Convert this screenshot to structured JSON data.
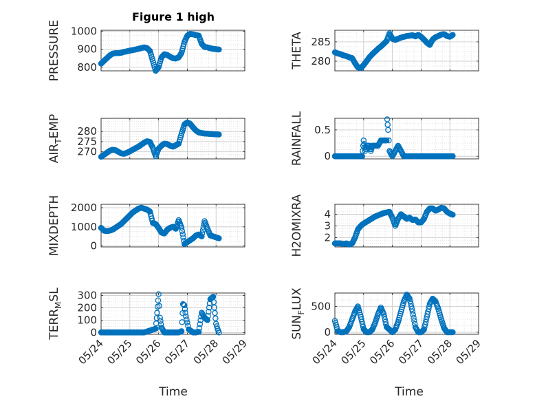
{
  "figure": {
    "title": "Figure 1 high",
    "xlabel": "Time",
    "marker_color": "#0072BD",
    "grid": "on, with minor grid"
  },
  "chart_data": [
    {
      "type": "scatter",
      "ylabel": "PRESSURE",
      "xlim": [
        "05/24",
        "05/29"
      ],
      "ylim": [
        780,
        1005
      ],
      "yticks": [
        800,
        900,
        1000
      ],
      "xticks": [
        "05/24",
        "05/25",
        "05/26",
        "05/27",
        "05/28",
        "05/29"
      ],
      "x": [
        0.0,
        0.1,
        0.2,
        0.3,
        0.4,
        0.5,
        0.6,
        0.7,
        0.8,
        0.9,
        1.0,
        1.1,
        1.2,
        1.3,
        1.4,
        1.5,
        1.6,
        1.7,
        1.8,
        1.9,
        2.0,
        2.1,
        2.2,
        2.3,
        2.4,
        2.5,
        2.6,
        2.7,
        2.8,
        2.9,
        3.0,
        3.1,
        3.2,
        3.3,
        3.4,
        3.5,
        3.6,
        3.7,
        3.8,
        3.9,
        4.0,
        4.1
      ],
      "y": [
        820,
        835,
        850,
        865,
        875,
        878,
        878,
        880,
        885,
        888,
        892,
        895,
        898,
        902,
        906,
        910,
        906,
        890,
        835,
        780,
        800,
        855,
        872,
        868,
        858,
        850,
        848,
        855,
        880,
        940,
        975,
        985,
        982,
        978,
        975,
        930,
        912,
        910,
        905,
        902,
        900,
        898
      ]
    },
    {
      "type": "scatter",
      "ylabel": "THETA",
      "xlim": [
        "05/24",
        "05/29"
      ],
      "ylim": [
        277.5,
        288
      ],
      "yticks": [
        280,
        285
      ],
      "xticks": [
        "05/24",
        "05/25",
        "05/26",
        "05/27",
        "05/28",
        "05/29"
      ],
      "x": [
        0.0,
        0.1,
        0.2,
        0.3,
        0.4,
        0.5,
        0.6,
        0.7,
        0.8,
        0.9,
        1.0,
        1.1,
        1.2,
        1.3,
        1.4,
        1.5,
        1.6,
        1.7,
        1.8,
        1.9,
        2.0,
        2.1,
        2.2,
        2.3,
        2.4,
        2.5,
        2.6,
        2.7,
        2.8,
        2.9,
        3.0,
        3.1,
        3.2,
        3.3,
        3.4,
        3.5,
        3.6,
        3.7,
        3.8,
        3.9,
        4.0,
        4.1
      ],
      "y": [
        282.3,
        282.0,
        281.8,
        281.5,
        281.3,
        281.0,
        280.8,
        279.5,
        278.4,
        278.2,
        279.0,
        280.0,
        281.0,
        281.8,
        282.5,
        283.2,
        283.8,
        284.5,
        285.2,
        287.2,
        285.8,
        285.5,
        285.8,
        286.1,
        286.3,
        286.5,
        286.6,
        286.7,
        286.4,
        286.8,
        286.3,
        285.6,
        284.8,
        284.2,
        285.6,
        286.2,
        286.5,
        286.9,
        287.0,
        286.5,
        286.3,
        286.8
      ]
    },
    {
      "type": "scatter",
      "ylabel_parts": [
        "AIR",
        "T",
        "EMP"
      ],
      "xlim": [
        "05/24",
        "05/29"
      ],
      "ylim": [
        266.5,
        286.5
      ],
      "yticks": [
        270,
        275,
        280
      ],
      "xticks": [
        "05/24",
        "05/25",
        "05/26",
        "05/27",
        "05/28",
        "05/29"
      ],
      "x": [
        0.0,
        0.1,
        0.2,
        0.3,
        0.4,
        0.5,
        0.6,
        0.7,
        0.8,
        0.9,
        1.0,
        1.1,
        1.2,
        1.3,
        1.4,
        1.5,
        1.6,
        1.7,
        1.8,
        1.9,
        2.0,
        2.1,
        2.2,
        2.3,
        2.4,
        2.5,
        2.6,
        2.7,
        2.8,
        2.9,
        3.0,
        3.1,
        3.2,
        3.3,
        3.4,
        3.5,
        3.6,
        3.7,
        3.8,
        3.9,
        4.0,
        4.1
      ],
      "y": [
        267.5,
        268.5,
        269.5,
        270.5,
        271.0,
        270.8,
        270.0,
        269.2,
        269.0,
        269.5,
        270.2,
        271.0,
        271.8,
        272.5,
        273.5,
        274.5,
        275.2,
        274.8,
        272.0,
        267.8,
        271.5,
        273.0,
        274.0,
        273.8,
        273.0,
        272.5,
        273.2,
        274.0,
        279.0,
        283.5,
        284.5,
        283.8,
        282.0,
        280.5,
        279.5,
        279.2,
        279.0,
        278.9,
        278.8,
        278.7,
        278.6,
        278.5
      ]
    },
    {
      "type": "scatter",
      "ylabel": "RAINFALL",
      "xlim": [
        "05/24",
        "05/29"
      ],
      "ylim": [
        -0.05,
        0.72
      ],
      "yticks": [
        0,
        0.5
      ],
      "xticks": [
        "05/24",
        "05/25",
        "05/26",
        "05/27",
        "05/28",
        "05/29"
      ],
      "x": [
        0.0,
        0.25,
        0.5,
        0.75,
        0.95,
        1.0,
        1.05,
        1.1,
        1.2,
        1.25,
        1.3,
        1.4,
        1.5,
        1.6,
        1.7,
        1.75,
        1.8,
        1.82,
        1.85,
        1.9,
        2.0,
        2.2,
        2.4,
        2.6,
        2.8,
        3.0,
        3.2,
        3.4,
        3.6,
        3.8,
        4.0,
        4.1
      ],
      "y": [
        0,
        0,
        0,
        0,
        0,
        0.3,
        0.1,
        0.2,
        0.2,
        0.1,
        0.2,
        0.2,
        0.2,
        0.3,
        0.3,
        0.3,
        0.3,
        0.7,
        0.5,
        0.1,
        0,
        0.2,
        0,
        0,
        0,
        0,
        0,
        0,
        0,
        0,
        0,
        0
      ]
    },
    {
      "type": "scatter",
      "ylabel": "MIXDEPTH",
      "xlim": [
        "05/24",
        "05/29"
      ],
      "ylim": [
        -50,
        2180
      ],
      "yticks": [
        0,
        1000,
        2000
      ],
      "xticks": [
        "05/24",
        "05/25",
        "05/26",
        "05/27",
        "05/28",
        "05/29"
      ],
      "x": [
        0.0,
        0.1,
        0.2,
        0.3,
        0.4,
        0.5,
        0.6,
        0.7,
        0.8,
        0.9,
        1.0,
        1.1,
        1.2,
        1.3,
        1.4,
        1.5,
        1.6,
        1.7,
        1.8,
        1.9,
        2.0,
        2.1,
        2.2,
        2.3,
        2.4,
        2.5,
        2.6,
        2.7,
        2.8,
        2.9,
        3.0,
        3.1,
        3.2,
        3.3,
        3.4,
        3.5,
        3.6,
        3.7,
        3.8,
        3.9,
        4.0,
        4.1
      ],
      "y": [
        950,
        800,
        780,
        800,
        850,
        950,
        1050,
        1150,
        1300,
        1450,
        1600,
        1750,
        1850,
        1950,
        2000,
        1950,
        1900,
        1800,
        1200,
        1150,
        950,
        700,
        650,
        850,
        950,
        1000,
        900,
        1350,
        950,
        100,
        200,
        300,
        400,
        550,
        600,
        500,
        1300,
        900,
        550,
        500,
        450,
        400
      ]
    },
    {
      "type": "scatter",
      "ylabel": "H2OMIXRA",
      "xlim": [
        "05/24",
        "05/29"
      ],
      "ylim": [
        1.2,
        4.85
      ],
      "yticks": [
        2,
        3,
        4
      ],
      "xticks": [
        "05/24",
        "05/25",
        "05/26",
        "05/27",
        "05/28",
        "05/29"
      ],
      "x": [
        0.0,
        0.1,
        0.2,
        0.3,
        0.4,
        0.5,
        0.6,
        0.7,
        0.8,
        0.9,
        1.0,
        1.1,
        1.2,
        1.3,
        1.4,
        1.5,
        1.6,
        1.7,
        1.8,
        1.9,
        2.0,
        2.1,
        2.2,
        2.3,
        2.4,
        2.5,
        2.6,
        2.7,
        2.8,
        2.9,
        3.0,
        3.1,
        3.2,
        3.3,
        3.4,
        3.5,
        3.6,
        3.7,
        3.8,
        3.9,
        4.0,
        4.1
      ],
      "y": [
        1.5,
        1.5,
        1.5,
        1.45,
        1.5,
        1.4,
        1.5,
        2.0,
        2.7,
        3.0,
        3.2,
        3.35,
        3.5,
        3.65,
        3.8,
        3.9,
        4.0,
        4.1,
        4.15,
        4.2,
        3.7,
        3.0,
        3.6,
        4.0,
        3.8,
        3.6,
        3.7,
        3.5,
        3.55,
        3.3,
        3.3,
        3.6,
        4.2,
        4.5,
        4.5,
        4.3,
        4.4,
        4.55,
        4.5,
        4.2,
        4.05,
        3.95
      ]
    },
    {
      "type": "scatter",
      "ylabel_parts": [
        "TERR",
        "M",
        "SL"
      ],
      "xlim": [
        "05/24",
        "05/29"
      ],
      "ylim": [
        -15,
        320
      ],
      "yticks": [
        0,
        100,
        200,
        300
      ],
      "xticks": [
        "05/24",
        "05/25",
        "05/26",
        "05/27",
        "05/28",
        "05/29"
      ],
      "x": [
        0.0,
        0.5,
        1.0,
        1.5,
        1.9,
        1.95,
        2.0,
        2.05,
        2.1,
        2.2,
        2.5,
        2.7,
        2.8,
        2.85,
        2.9,
        2.95,
        3.0,
        3.05,
        3.2,
        3.3,
        3.4,
        3.5,
        3.6,
        3.7,
        3.8,
        3.9,
        4.0,
        4.05,
        4.1
      ],
      "y": [
        0,
        0,
        0,
        0,
        30,
        160,
        310,
        120,
        40,
        0,
        0,
        0,
        10,
        230,
        220,
        130,
        80,
        25,
        0,
        0,
        5,
        160,
        120,
        100,
        270,
        290,
        70,
        30,
        0
      ]
    },
    {
      "type": "scatter",
      "ylabel_parts": [
        "SUN",
        "F",
        "LUX"
      ],
      "xlim": [
        "05/24",
        "05/29"
      ],
      "ylim": [
        -40,
        760
      ],
      "yticks": [
        0,
        500
      ],
      "xticks": [
        "05/24",
        "05/25",
        "05/26",
        "05/27",
        "05/28",
        "05/29"
      ],
      "x": [
        0.0,
        0.1,
        0.2,
        0.3,
        0.4,
        0.5,
        0.6,
        0.7,
        0.8,
        0.9,
        1.0,
        1.1,
        1.2,
        1.3,
        1.4,
        1.5,
        1.6,
        1.7,
        1.8,
        1.9,
        2.0,
        2.1,
        2.2,
        2.3,
        2.4,
        2.5,
        2.6,
        2.7,
        2.8,
        2.9,
        3.0,
        3.1,
        3.2,
        3.3,
        3.4,
        3.5,
        3.6,
        3.7,
        3.8,
        3.9,
        4.0,
        4.1
      ],
      "y": [
        220,
        20,
        0,
        0,
        20,
        100,
        250,
        400,
        500,
        300,
        60,
        0,
        0,
        50,
        180,
        350,
        480,
        350,
        100,
        50,
        0,
        50,
        200,
        400,
        600,
        730,
        650,
        400,
        100,
        0,
        0,
        50,
        300,
        550,
        650,
        600,
        450,
        250,
        80,
        0,
        0,
        0
      ]
    }
  ]
}
